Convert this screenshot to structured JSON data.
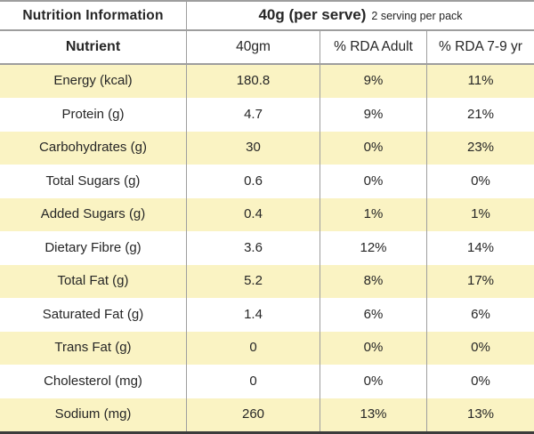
{
  "table": {
    "title": "Nutrition Information",
    "serve_size": "40g (per serve)",
    "serve_note": "2 serving per pack",
    "columns": [
      "Nutrient",
      "40gm",
      "% RDA Adult",
      "% RDA 7-9 yr"
    ],
    "rows": [
      {
        "nutrient": "Energy (kcal)",
        "amount": "180.8",
        "rda_adult": "9%",
        "rda_7_9yr": "11%"
      },
      {
        "nutrient": "Protein (g)",
        "amount": "4.7",
        "rda_adult": "9%",
        "rda_7_9yr": "21%"
      },
      {
        "nutrient": "Carbohydrates (g)",
        "amount": "30",
        "rda_adult": "0%",
        "rda_7_9yr": "23%"
      },
      {
        "nutrient": "Total Sugars (g)",
        "amount": "0.6",
        "rda_adult": "0%",
        "rda_7_9yr": "0%"
      },
      {
        "nutrient": "Added Sugars (g)",
        "amount": "0.4",
        "rda_adult": "1%",
        "rda_7_9yr": "1%"
      },
      {
        "nutrient": "Dietary Fibre (g)",
        "amount": "3.6",
        "rda_adult": "12%",
        "rda_7_9yr": "14%"
      },
      {
        "nutrient": "Total Fat (g)",
        "amount": "5.2",
        "rda_adult": "8%",
        "rda_7_9yr": "17%"
      },
      {
        "nutrient": "Saturated Fat (g)",
        "amount": "1.4",
        "rda_adult": "6%",
        "rda_7_9yr": "6%"
      },
      {
        "nutrient": "Trans Fat (g)",
        "amount": "0",
        "rda_adult": "0%",
        "rda_7_9yr": "0%"
      },
      {
        "nutrient": "Cholesterol (mg)",
        "amount": "0",
        "rda_adult": "0%",
        "rda_7_9yr": "0%"
      },
      {
        "nutrient": "Sodium (mg)",
        "amount": "260",
        "rda_adult": "13%",
        "rda_7_9yr": "13%"
      }
    ],
    "colors": {
      "row_highlight": "#faf3c3",
      "grid_line": "#9e9e9e",
      "bottom_border": "#3c3c3c",
      "text": "#262626"
    }
  }
}
